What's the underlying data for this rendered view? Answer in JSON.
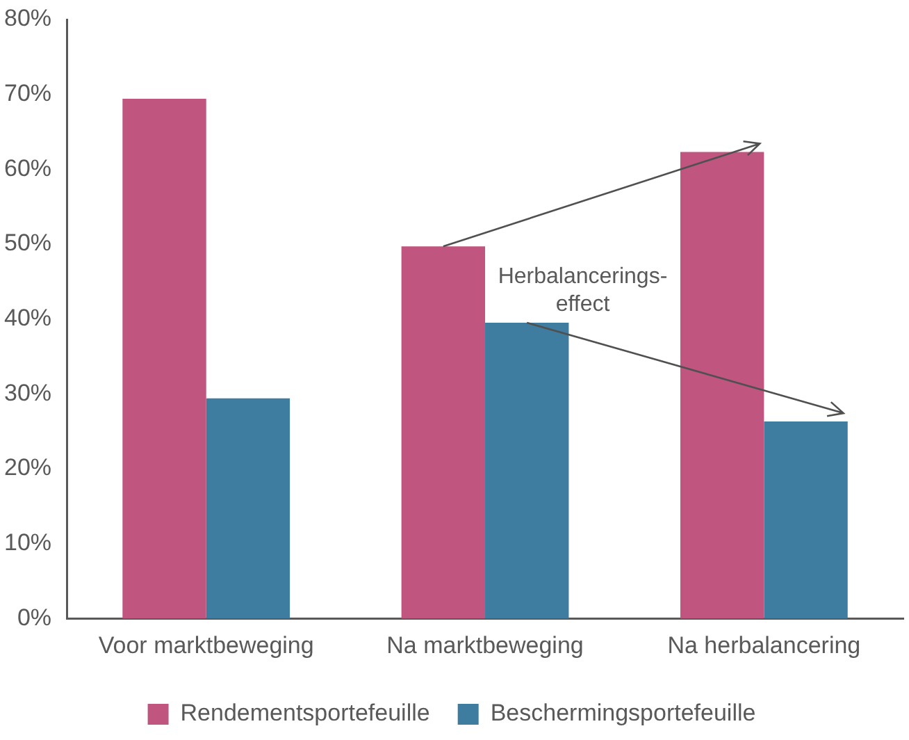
{
  "chart_data": {
    "type": "bar",
    "categories": [
      "Voor marktbeweging",
      "Na marktbeweging",
      "Na herbalancering"
    ],
    "series": [
      {
        "name": "Rendementsportefeuille",
        "color": "#c0557f",
        "values": [
          69.4,
          49.7,
          62.3
        ]
      },
      {
        "name": "Beschermingsportefeuille",
        "color": "#3e7ca0",
        "values": [
          29.4,
          39.5,
          26.3
        ]
      }
    ],
    "ylim": [
      0,
      80
    ],
    "yticks": [
      {
        "value": 0,
        "label": "0%"
      },
      {
        "value": 10,
        "label": "10%"
      },
      {
        "value": 20,
        "label": "20%"
      },
      {
        "value": 30,
        "label": "30%"
      },
      {
        "value": 40,
        "label": "40%"
      },
      {
        "value": 50,
        "label": "50%"
      },
      {
        "value": 60,
        "label": "60%"
      },
      {
        "value": 70,
        "label": "70%"
      },
      {
        "value": 80,
        "label": "80%"
      }
    ],
    "grid": false,
    "legend": "bottom",
    "annotations": [
      "Herbalancerings-\neffect"
    ]
  }
}
